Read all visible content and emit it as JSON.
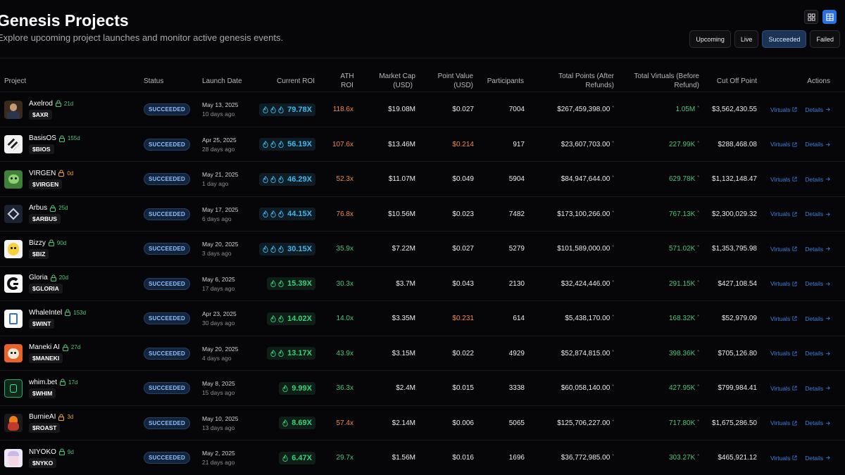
{
  "header": {
    "title": "Genesis Projects",
    "subtitle": "Explore upcoming project launches and monitor active genesis events."
  },
  "view_toggle": {
    "options": [
      {
        "name": "grid-view",
        "icon": "grid-icon",
        "active": false
      },
      {
        "name": "table-view",
        "icon": "table-icon",
        "active": true
      }
    ]
  },
  "filters": [
    {
      "label": "Upcoming",
      "active": false
    },
    {
      "label": "Live",
      "active": false
    },
    {
      "label": "Succeeded",
      "active": true
    },
    {
      "label": "Failed",
      "active": false
    }
  ],
  "columns": {
    "project": "Project",
    "status": "Status",
    "launch_date": "Launch Date",
    "current_roi": "Current ROI",
    "ath_roi_1": "ATH",
    "ath_roi_2": "ROI",
    "market_cap_1": "Market Cap",
    "market_cap_2": "(USD)",
    "point_value_1": "Point Value",
    "point_value_2": "(USD)",
    "participants": "Participants",
    "total_points_1": "Total Points (After",
    "total_points_2": "Refunds)",
    "total_virtuals_1": "Total Virtuals (Before",
    "total_virtuals_2": "Refund)",
    "cut_off": "Cut Off Point",
    "actions": "Actions"
  },
  "colors": {
    "roi_teal": "#3fb8f0",
    "roi_green": "#34d27a",
    "lock_green": "#4cc77a",
    "lock_orange": "#e8a33b",
    "ath_orange": "#f08a4b",
    "ath_green": "#4cc77a",
    "link_blue": "#3f7fe0"
  },
  "actions": {
    "virtuals": "Virtuals",
    "details": "Details"
  },
  "rows": [
    {
      "name": "Axelrod",
      "lock_days": "21d",
      "lock_color": "green",
      "ticker": "$AXR",
      "status": "SUCCEEDED",
      "date": "May 13, 2025",
      "ago": "10 days ago",
      "flames": 3,
      "roi": "79.78X",
      "roi_color": "teal",
      "ath": "118.6x",
      "ath_color": "orange",
      "market_cap": "$19.08M",
      "point_value": "$0.027",
      "pv_color": "white",
      "participants": "7004",
      "total_points": "$267,459,398.00",
      "total_virtuals": "1.05M",
      "cut_off": "$3,562,430.55",
      "avatar": "axelrod"
    },
    {
      "name": "BasisOS",
      "lock_days": "155d",
      "lock_color": "green",
      "ticker": "$BIOS",
      "status": "SUCCEEDED",
      "date": "Apr 25, 2025",
      "ago": "28 days ago",
      "flames": 3,
      "roi": "56.19X",
      "roi_color": "teal",
      "ath": "107.6x",
      "ath_color": "orange",
      "market_cap": "$13.46M",
      "point_value": "$0.214",
      "pv_color": "orange",
      "participants": "917",
      "total_points": "$23,607,703.00",
      "total_virtuals": "227.99K",
      "cut_off": "$288,468.08",
      "avatar": "basisos"
    },
    {
      "name": "VIRGEN",
      "lock_days": "0d",
      "lock_color": "orange",
      "ticker": "$VIRGEN",
      "status": "SUCCEEDED",
      "date": "May 21, 2025",
      "ago": "1 day ago",
      "flames": 3,
      "roi": "46.29X",
      "roi_color": "teal",
      "ath": "52.3x",
      "ath_color": "orange",
      "market_cap": "$11.07M",
      "point_value": "$0.049",
      "pv_color": "white",
      "participants": "5904",
      "total_points": "$84,947,644.00",
      "total_virtuals": "629.78K",
      "cut_off": "$1,132,148.47",
      "avatar": "virgen"
    },
    {
      "name": "Arbus",
      "lock_days": "25d",
      "lock_color": "green",
      "ticker": "$ARBUS",
      "status": "SUCCEEDED",
      "date": "May 17, 2025",
      "ago": "6 days ago",
      "flames": 3,
      "roi": "44.15X",
      "roi_color": "teal",
      "ath": "76.8x",
      "ath_color": "orange",
      "market_cap": "$10.56M",
      "point_value": "$0.023",
      "pv_color": "white",
      "participants": "7482",
      "total_points": "$173,100,266.00",
      "total_virtuals": "767.13K",
      "cut_off": "$2,300,029.32",
      "avatar": "arbus"
    },
    {
      "name": "Bizzy",
      "lock_days": "90d",
      "lock_color": "green",
      "ticker": "$BIZ",
      "status": "SUCCEEDED",
      "date": "May 20, 2025",
      "ago": "3 days ago",
      "flames": 3,
      "roi": "30.15X",
      "roi_color": "teal",
      "ath": "35.9x",
      "ath_color": "green",
      "market_cap": "$7.22M",
      "point_value": "$0.027",
      "pv_color": "white",
      "participants": "5279",
      "total_points": "$101,589,000.00",
      "total_virtuals": "571.02K",
      "cut_off": "$1,353,795.98",
      "avatar": "bizzy"
    },
    {
      "name": "Gloria",
      "lock_days": "20d",
      "lock_color": "green",
      "ticker": "$GLORIA",
      "status": "SUCCEEDED",
      "date": "May 6, 2025",
      "ago": "17 days ago",
      "flames": 2,
      "roi": "15.39X",
      "roi_color": "green",
      "ath": "30.3x",
      "ath_color": "green",
      "market_cap": "$3.7M",
      "point_value": "$0.043",
      "pv_color": "white",
      "participants": "2130",
      "total_points": "$32,424,446.00",
      "total_virtuals": "291.15K",
      "cut_off": "$427,108.54",
      "avatar": "gloria"
    },
    {
      "name": "WhaleIntel",
      "lock_days": "153d",
      "lock_color": "green",
      "ticker": "$WINT",
      "status": "SUCCEEDED",
      "date": "Apr 23, 2025",
      "ago": "30 days ago",
      "flames": 2,
      "roi": "14.02X",
      "roi_color": "green",
      "ath": "14.0x",
      "ath_color": "green",
      "market_cap": "$3.35M",
      "point_value": "$0.231",
      "pv_color": "orange",
      "participants": "614",
      "total_points": "$5,438,170.00",
      "total_virtuals": "168.32K",
      "cut_off": "$52,979.09",
      "avatar": "whaleintel"
    },
    {
      "name": "Maneki AI",
      "lock_days": "27d",
      "lock_color": "green",
      "ticker": "$MANEKI",
      "status": "SUCCEEDED",
      "date": "May 20, 2025",
      "ago": "4 days ago",
      "flames": 2,
      "roi": "13.17X",
      "roi_color": "green",
      "ath": "43.9x",
      "ath_color": "green",
      "market_cap": "$3.15M",
      "point_value": "$0.022",
      "pv_color": "white",
      "participants": "4929",
      "total_points": "$52,874,815.00",
      "total_virtuals": "398.36K",
      "cut_off": "$705,126.80",
      "avatar": "maneki"
    },
    {
      "name": "whim.bet",
      "lock_days": "17d",
      "lock_color": "green",
      "ticker": "$WHIM",
      "status": "SUCCEEDED",
      "date": "May 8, 2025",
      "ago": "15 days ago",
      "flames": 1,
      "roi": "9.99X",
      "roi_color": "green",
      "ath": "36.3x",
      "ath_color": "green",
      "market_cap": "$2.4M",
      "point_value": "$0.015",
      "pv_color": "white",
      "participants": "3338",
      "total_points": "$60,058,140.00",
      "total_virtuals": "427.95K",
      "cut_off": "$799,984.41",
      "avatar": "whim"
    },
    {
      "name": "BurnieAI",
      "lock_days": "3d",
      "lock_color": "orange",
      "ticker": "$ROAST",
      "status": "SUCCEEDED",
      "date": "May 10, 2025",
      "ago": "13 days ago",
      "flames": 1,
      "roi": "8.69X",
      "roi_color": "green",
      "ath": "57.4x",
      "ath_color": "orange",
      "market_cap": "$2.14M",
      "point_value": "$0.006",
      "pv_color": "white",
      "participants": "5065",
      "total_points": "$125,706,227.00",
      "total_virtuals": "717.80K",
      "cut_off": "$1,675,286.50",
      "avatar": "burnie"
    },
    {
      "name": "NIYOKO",
      "lock_days": "9d",
      "lock_color": "green",
      "ticker": "$NYKO",
      "status": "SUCCEEDED",
      "date": "May 2, 2025",
      "ago": "21 days ago",
      "flames": 1,
      "roi": "6.47X",
      "roi_color": "green",
      "ath": "29.7x",
      "ath_color": "green",
      "market_cap": "$1.56M",
      "point_value": "$0.016",
      "pv_color": "white",
      "participants": "1696",
      "total_points": "$36,772,985.00",
      "total_virtuals": "303.27K",
      "cut_off": "$465,921.12",
      "avatar": "niyoko"
    }
  ]
}
